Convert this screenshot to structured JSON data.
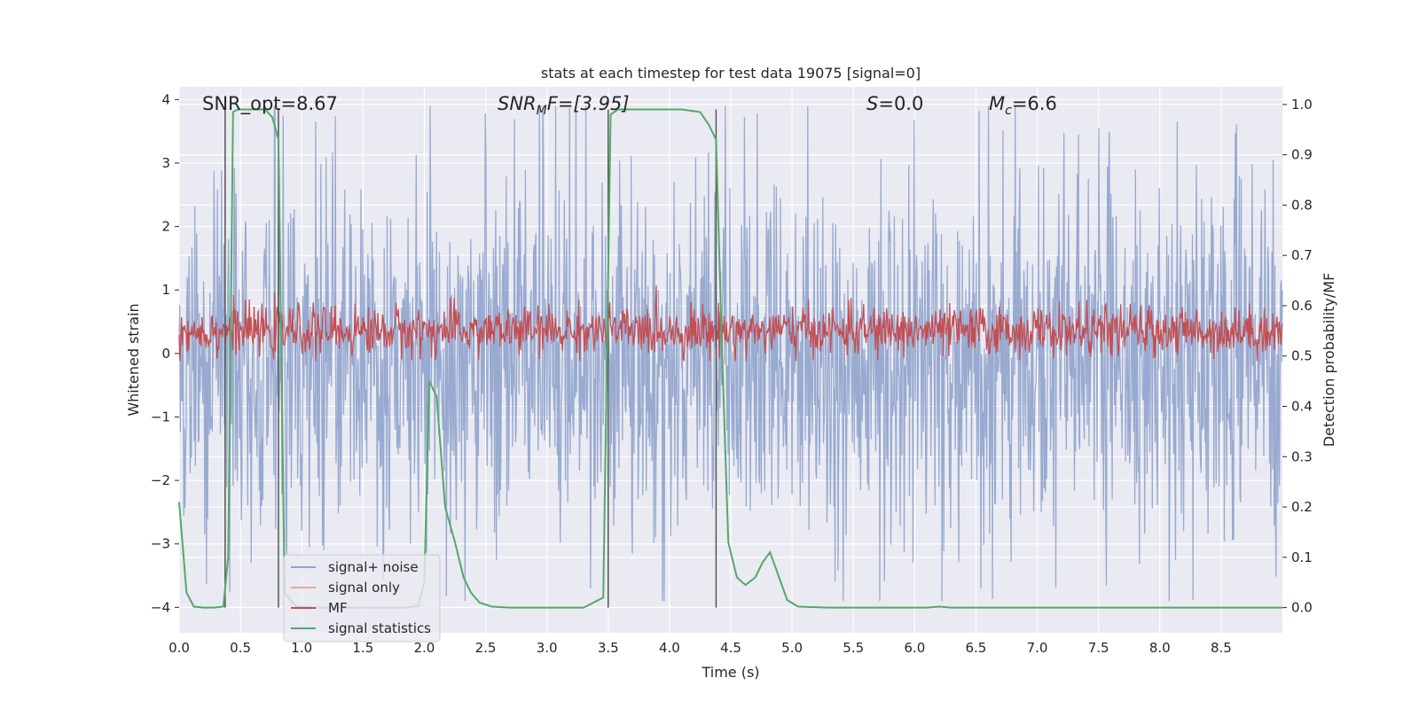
{
  "chart_data": {
    "type": "line",
    "title": "stats at each timestep for test data 19075 [signal=0]",
    "xlabel": "Time (s)",
    "ylabel": "Whitened strain",
    "y2label": "Detection probability/MF",
    "xlim": [
      0,
      9.0
    ],
    "ylim": [
      -4.4,
      4.2
    ],
    "y2lim": [
      -0.05,
      1.035
    ],
    "x_ticks": [
      0.0,
      0.5,
      1.0,
      1.5,
      2.0,
      2.5,
      3.0,
      3.5,
      4.0,
      4.5,
      5.0,
      5.5,
      6.0,
      6.5,
      7.0,
      7.5,
      8.0,
      8.5
    ],
    "x_tick_labels": [
      "0.0",
      "0.5",
      "1.0",
      "1.5",
      "2.0",
      "2.5",
      "3.0",
      "3.5",
      "4.0",
      "4.5",
      "5.0",
      "5.5",
      "6.0",
      "6.5",
      "7.0",
      "7.5",
      "8.0",
      "8.5"
    ],
    "y_ticks": [
      -4,
      -3,
      -2,
      -1,
      0,
      1,
      2,
      3,
      4
    ],
    "y_tick_labels": [
      "−4",
      "−3",
      "−2",
      "−1",
      "0",
      "1",
      "2",
      "3",
      "4"
    ],
    "y2_ticks": [
      0.0,
      0.1,
      0.2,
      0.3,
      0.4,
      0.5,
      0.6,
      0.7,
      0.8,
      0.9,
      1.0
    ],
    "y2_tick_labels": [
      "0.0",
      "0.1",
      "0.2",
      "0.3",
      "0.4",
      "0.5",
      "0.6",
      "0.7",
      "0.8",
      "0.9",
      "1.0"
    ],
    "grid": true,
    "legend_position": "lower-left",
    "annotations": {
      "snr_opt": "SNR_opt=8.67",
      "snr_mf_main": "SNR",
      "snr_mf_sub": "M",
      "snr_mf_rest": "F=[3.95]",
      "s_main": "S",
      "s_rest": "=0.0",
      "mc_main": "M",
      "mc_sub": "c",
      "mc_rest": "=6.6"
    },
    "vertical_lines": [
      0.375,
      0.81,
      3.5,
      4.38
    ],
    "series": [
      {
        "name": "signal+ noise",
        "axis": "left",
        "color": "#8fa3cc",
        "style": "dense noisy trace",
        "typical_range": [
          -1.7,
          1.5
        ],
        "peak_range": [
          -3.9,
          3.9
        ]
      },
      {
        "name": "signal only",
        "axis": "left",
        "color": "#e8a88a"
      },
      {
        "name": "MF",
        "axis": "right",
        "color": "#c44e52",
        "style": "noisy trace",
        "typical_range": [
          0.51,
          0.59
        ],
        "peak_range": [
          0.49,
          0.64
        ]
      },
      {
        "name": "signal statistics",
        "axis": "right",
        "color": "#55a868",
        "x": [
          0.0,
          0.06,
          0.12,
          0.2,
          0.28,
          0.36,
          0.4,
          0.44,
          0.48,
          0.55,
          0.62,
          0.7,
          0.76,
          0.81,
          0.86,
          0.95,
          1.1,
          1.3,
          1.5,
          1.7,
          1.85,
          1.95,
          2.0,
          2.04,
          2.1,
          2.17,
          2.25,
          2.32,
          2.38,
          2.45,
          2.55,
          2.7,
          3.0,
          3.3,
          3.46,
          3.52,
          3.58,
          3.7,
          3.9,
          4.1,
          4.25,
          4.32,
          4.38,
          4.43,
          4.48,
          4.55,
          4.62,
          4.7,
          4.76,
          4.82,
          4.88,
          4.96,
          5.05,
          5.3,
          5.8,
          6.1,
          6.2,
          6.3,
          6.6,
          7.5,
          8.5,
          9.0
        ],
        "values": [
          0.21,
          0.03,
          0.002,
          0.0,
          0.0,
          0.002,
          0.1,
          0.985,
          0.99,
          0.99,
          0.99,
          0.99,
          0.975,
          0.93,
          0.03,
          0.003,
          0.0,
          0.0,
          0.0,
          0.0,
          0.0,
          0.003,
          0.05,
          0.45,
          0.42,
          0.2,
          0.13,
          0.06,
          0.03,
          0.01,
          0.002,
          0.0,
          0.0,
          0.0,
          0.02,
          0.98,
          0.99,
          0.99,
          0.99,
          0.99,
          0.985,
          0.96,
          0.93,
          0.5,
          0.13,
          0.06,
          0.045,
          0.06,
          0.09,
          0.11,
          0.07,
          0.015,
          0.002,
          0.0,
          0.0,
          0.0,
          0.002,
          0.0,
          0.0,
          0.0,
          0.0,
          0.0
        ]
      }
    ]
  }
}
